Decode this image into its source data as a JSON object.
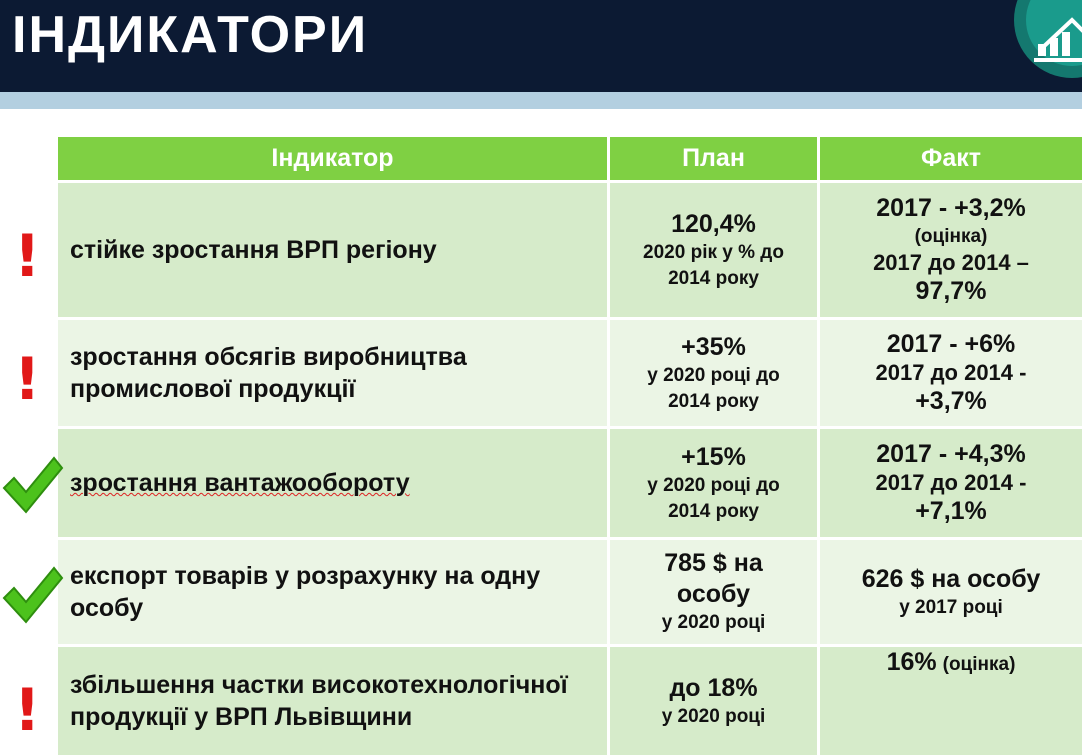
{
  "header": {
    "title": "ІНДИКАТОРИ",
    "logo_icon": "bar-chart-growth-icon"
  },
  "table": {
    "columns": [
      "Індикатор",
      "План",
      "Факт"
    ],
    "rows": [
      {
        "status": "warning",
        "status_icon": "exclamation-icon",
        "status_text": "!",
        "indicator": "стійке зростання ВРП регіону",
        "plan_main": "120,4%",
        "plan_sub": "2020 рік у % до 2014 року",
        "fact_line1": "2017 - +3,2%",
        "fact_line2": "(оцінка)",
        "fact_line3": "2017 до 2014 –",
        "fact_line4": "97,7%"
      },
      {
        "status": "warning",
        "status_icon": "exclamation-icon",
        "status_text": "!",
        "indicator": "зростання обсягів виробництва промислової продукції",
        "plan_main": "+35%",
        "plan_sub": "у 2020 році до 2014 року",
        "fact_line1": "2017 - +6%",
        "fact_line2": "2017 до 2014 -",
        "fact_line3": "+3,7%"
      },
      {
        "status": "ok",
        "status_icon": "check-mark-icon",
        "indicator": "зростання вантажообороту",
        "plan_main": "+15%",
        "plan_sub": "у 2020 році до 2014 року",
        "fact_line1": "2017 - +4,3%",
        "fact_line2": "2017 до 2014 -",
        "fact_line3": "+7,1%"
      },
      {
        "status": "ok",
        "status_icon": "check-mark-icon",
        "indicator": "експорт товарів у розрахунку на одну особу",
        "plan_main": "785 $ на особу",
        "plan_sub": "у 2020 році",
        "fact_line1": "626 $ на особу",
        "fact_line2": "у 2017 році"
      },
      {
        "status": "warning",
        "status_icon": "exclamation-icon",
        "status_text": "!",
        "indicator": "збільшення частки високотехнологічної продукції у ВРП Львівщини",
        "plan_main": "до 18%",
        "plan_sub": "у 2020 році",
        "fact_main": "16%",
        "fact_note": "(оцінка)"
      }
    ]
  },
  "colors": {
    "header_bg": "#0c1a33",
    "table_header": "#7fd043",
    "row_dark": "#d6ebca",
    "row_light": "#ebf5e5",
    "warning": "#e11818",
    "ok": "#4cc21c"
  }
}
